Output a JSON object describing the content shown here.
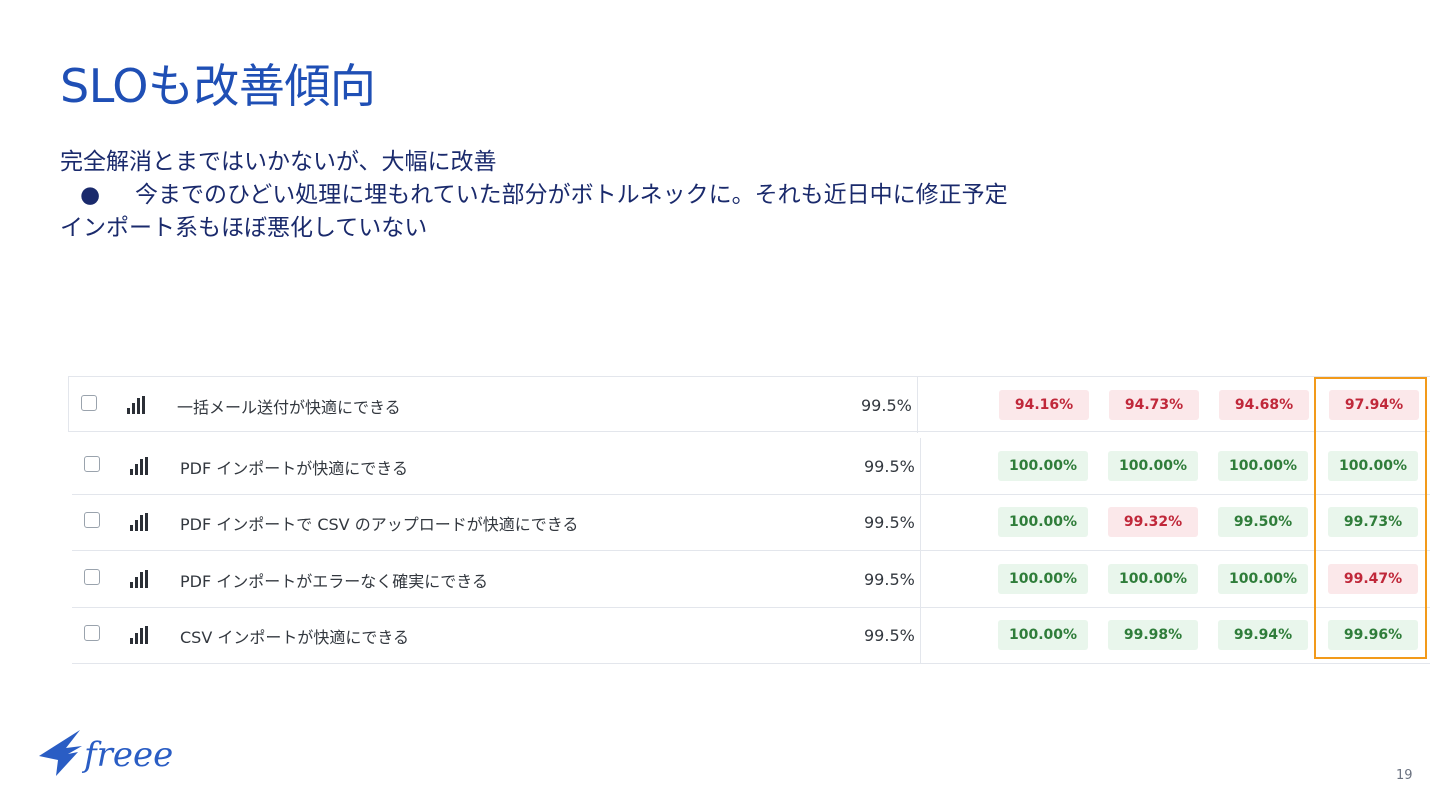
{
  "title": "SLOも改善傾向",
  "bullets": [
    "完全解消とまではいかないが、大幅に改善",
    "今までのひどい処理に埋もれていた部分がボトルネックに。それも近日中に修正予定",
    "インポート系もほぼ悪化していない"
  ],
  "bullet_marker": "●",
  "table": {
    "rows": [
      {
        "name": "一括メール送付が快適にできる",
        "target": "99.5%",
        "values": [
          {
            "v": "94.16%",
            "s": "bad"
          },
          {
            "v": "94.73%",
            "s": "bad"
          },
          {
            "v": "94.68%",
            "s": "bad"
          },
          {
            "v": "97.94%",
            "s": "bad"
          }
        ]
      },
      {
        "name": "PDF インポートが快適にできる",
        "target": "99.5%",
        "values": [
          {
            "v": "100.00%",
            "s": "good"
          },
          {
            "v": "100.00%",
            "s": "good"
          },
          {
            "v": "100.00%",
            "s": "good"
          },
          {
            "v": "100.00%",
            "s": "good"
          }
        ]
      },
      {
        "name": "PDF インポートで CSV のアップロードが快適にできる",
        "target": "99.5%",
        "values": [
          {
            "v": "100.00%",
            "s": "good"
          },
          {
            "v": "99.32%",
            "s": "bad"
          },
          {
            "v": "99.50%",
            "s": "good"
          },
          {
            "v": "99.73%",
            "s": "good"
          }
        ]
      },
      {
        "name": "PDF インポートがエラーなく確実にできる",
        "target": "99.5%",
        "values": [
          {
            "v": "100.00%",
            "s": "good"
          },
          {
            "v": "100.00%",
            "s": "good"
          },
          {
            "v": "100.00%",
            "s": "good"
          },
          {
            "v": "99.47%",
            "s": "bad"
          }
        ]
      },
      {
        "name": "CSV インポートが快適にできる",
        "target": "99.5%",
        "values": [
          {
            "v": "100.00%",
            "s": "good"
          },
          {
            "v": "99.98%",
            "s": "good"
          },
          {
            "v": "99.94%",
            "s": "good"
          },
          {
            "v": "99.96%",
            "s": "good"
          }
        ]
      }
    ]
  },
  "colors": {
    "title": "#1f4fb5",
    "text": "#1a2a6c",
    "good_bg": "#e9f6ec",
    "good_fg": "#2f7d3a",
    "bad_bg": "#fbe8ea",
    "bad_fg": "#c0283a",
    "highlight": "#f29a1a"
  },
  "logo": {
    "text": "freee"
  },
  "page_number": "19"
}
